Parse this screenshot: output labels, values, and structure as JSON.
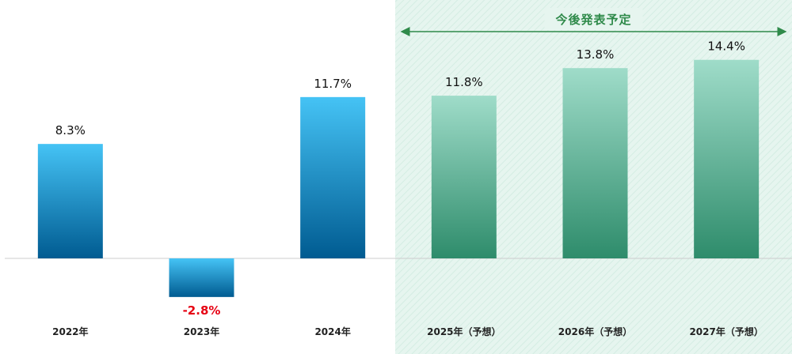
{
  "chart_data": {
    "type": "bar",
    "categories": [
      "2022年",
      "2023年",
      "2024年",
      "2025年（予想）",
      "2026年（予想）",
      "2027年（予想）"
    ],
    "values": [
      8.3,
      -2.8,
      11.7,
      11.8,
      13.8,
      14.4
    ],
    "value_labels": [
      "8.3%",
      "-2.8%",
      "11.7%",
      "11.8%",
      "13.8%",
      "14.4%"
    ],
    "forecast_label": "今後発表予定",
    "forecast_start_index": 3,
    "ylim": [
      -3,
      16
    ],
    "grid": false,
    "colors": {
      "actual_top": "#45c3f5",
      "actual_bottom": "#005b91",
      "forecast_top": "#9fdcc9",
      "forecast_bottom": "#2e8c6b",
      "forecast_bg": "#e9f6f1",
      "forecast_accent": "#2f8a4a",
      "negative_label": "#e60012",
      "baseline": "#cccccc"
    }
  }
}
